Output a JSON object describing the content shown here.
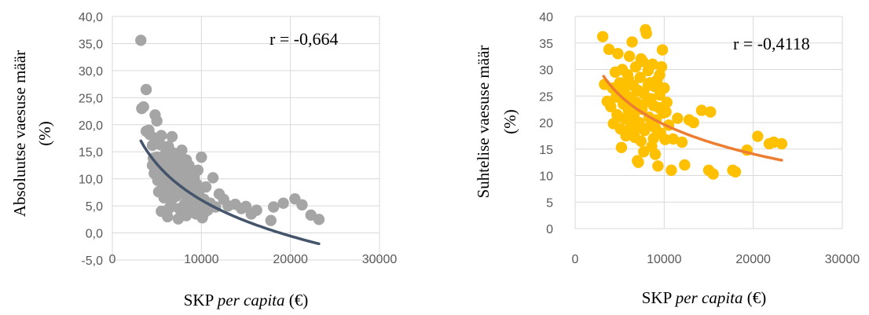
{
  "chart_data": [
    {
      "type": "scatter",
      "title": "",
      "ylabel_line1": "Absoluutse vaesuse määr",
      "ylabel_line2": "(%)",
      "xlabel_main": "SKP ",
      "xlabel_italic": "per capita",
      "xlabel_unit": " (€)",
      "annotation": "r = -0,664",
      "xlim": [
        0,
        30000
      ],
      "ylim": [
        -5,
        40
      ],
      "x_ticks": [
        0,
        10000,
        20000,
        30000
      ],
      "x_tick_labels": [
        "0",
        "10000",
        "20000",
        "30000"
      ],
      "y_ticks": [
        -5,
        0,
        5,
        10,
        15,
        20,
        25,
        30,
        35,
        40
      ],
      "y_tick_labels": [
        "-5,0",
        "0,0",
        "5,0",
        "10,0",
        "15,0",
        "20,0",
        "25,0",
        "30,0",
        "35,0",
        "40,0"
      ],
      "grid": true,
      "point_color": "#a5a5a5",
      "trend_color": "#44546a",
      "trend": {
        "type": "log",
        "a": 94.5,
        "b": -9.6,
        "x_range": [
          3200,
          23200
        ]
      },
      "points": [
        [
          3200,
          35.6
        ],
        [
          3300,
          23.0
        ],
        [
          3500,
          23.3
        ],
        [
          3800,
          26.5
        ],
        [
          3800,
          18.8
        ],
        [
          4100,
          19.0
        ],
        [
          4200,
          18.2
        ],
        [
          4500,
          16.2
        ],
        [
          4500,
          12.5
        ],
        [
          4700,
          11.0
        ],
        [
          4800,
          21.8
        ],
        [
          4900,
          17.5
        ],
        [
          5000,
          20.7
        ],
        [
          5000,
          14.0
        ],
        [
          5100,
          9.7
        ],
        [
          5200,
          7.6
        ],
        [
          5300,
          13.0
        ],
        [
          5400,
          16.3
        ],
        [
          5500,
          18.0
        ],
        [
          5600,
          11.5
        ],
        [
          5700,
          8.7
        ],
        [
          5800,
          6.5
        ],
        [
          5900,
          14.5
        ],
        [
          6000,
          12.2
        ],
        [
          6100,
          10.2
        ],
        [
          6200,
          7.0
        ],
        [
          6300,
          16.0
        ],
        [
          6400,
          13.3
        ],
        [
          6500,
          9.0
        ],
        [
          6600,
          11.8
        ],
        [
          6600,
          5.8
        ],
        [
          6700,
          17.8
        ],
        [
          6800,
          14.8
        ],
        [
          6900,
          8.0
        ],
        [
          7000,
          12.0
        ],
        [
          7100,
          10.5
        ],
        [
          7200,
          6.8
        ],
        [
          7300,
          13.8
        ],
        [
          7400,
          9.5
        ],
        [
          7500,
          4.5
        ],
        [
          7600,
          11.2
        ],
        [
          7700,
          7.5
        ],
        [
          7800,
          15.3
        ],
        [
          7900,
          12.8
        ],
        [
          8000,
          8.5
        ],
        [
          8100,
          5.3
        ],
        [
          8200,
          10.8
        ],
        [
          8300,
          13.5
        ],
        [
          8400,
          6.3
        ],
        [
          8500,
          9.8
        ],
        [
          8600,
          12.5
        ],
        [
          8700,
          7.8
        ],
        [
          8800,
          4.0
        ],
        [
          8900,
          11.0
        ],
        [
          9000,
          8.2
        ],
        [
          9100,
          5.8
        ],
        [
          9200,
          10.3
        ],
        [
          9300,
          6.8
        ],
        [
          9400,
          3.5
        ],
        [
          9500,
          9.0
        ],
        [
          9700,
          7.3
        ],
        [
          9900,
          5.0
        ],
        [
          10000,
          14.0
        ],
        [
          10100,
          2.8
        ],
        [
          10300,
          6.2
        ],
        [
          10500,
          8.5
        ],
        [
          10700,
          4.2
        ],
        [
          11000,
          5.5
        ],
        [
          11300,
          10.2
        ],
        [
          11600,
          4.8
        ],
        [
          12000,
          7.2
        ],
        [
          12500,
          6.2
        ],
        [
          13000,
          5.0
        ],
        [
          13800,
          5.3
        ],
        [
          14500,
          4.5
        ],
        [
          15000,
          4.9
        ],
        [
          15600,
          3.5
        ],
        [
          16200,
          4.2
        ],
        [
          17800,
          2.3
        ],
        [
          18100,
          4.8
        ],
        [
          19200,
          5.5
        ],
        [
          20500,
          6.3
        ],
        [
          21300,
          5.2
        ],
        [
          22300,
          3.3
        ],
        [
          23200,
          2.5
        ],
        [
          5500,
          4.0
        ],
        [
          6200,
          3.0
        ],
        [
          7400,
          2.6
        ],
        [
          8300,
          3.2
        ],
        [
          6000,
          15.8
        ],
        [
          4600,
          13.8
        ],
        [
          5800,
          10.8
        ],
        [
          6800,
          12.4
        ],
        [
          7800,
          8.8
        ],
        [
          8800,
          9.6
        ],
        [
          9600,
          11.6
        ],
        [
          7200,
          14.2
        ],
        [
          6400,
          4.6
        ],
        [
          10200,
          3.4
        ],
        [
          8600,
          6.0
        ]
      ]
    },
    {
      "type": "scatter",
      "title": "",
      "ylabel_line1": "Suhtelise vaesuse määr",
      "ylabel_line2": "(%)",
      "xlabel_main": "SKP ",
      "xlabel_italic": "per capita",
      "xlabel_unit": " (€)",
      "annotation": "r = -0,4118",
      "xlim": [
        0,
        30000
      ],
      "ylim": [
        0,
        40
      ],
      "x_ticks": [
        0,
        10000,
        20000,
        30000
      ],
      "x_tick_labels": [
        "0",
        "10000",
        "20000",
        "30000"
      ],
      "y_ticks": [
        0,
        5,
        10,
        15,
        20,
        25,
        30,
        35,
        40
      ],
      "y_tick_labels": [
        "0",
        "5",
        "10",
        "15",
        "20",
        "25",
        "30",
        "35",
        "40"
      ],
      "grid": true,
      "point_color": "#ffc000",
      "trend_color": "#ed7d31",
      "trend": {
        "type": "log",
        "a": 93.3,
        "b": -8.0,
        "x_range": [
          3200,
          23200
        ]
      },
      "points": [
        [
          3100,
          36.2
        ],
        [
          3300,
          27.2
        ],
        [
          3600,
          24.0
        ],
        [
          3800,
          33.8
        ],
        [
          4000,
          23.0
        ],
        [
          4200,
          26.5
        ],
        [
          4300,
          19.8
        ],
        [
          4500,
          29.5
        ],
        [
          4600,
          24.8
        ],
        [
          4800,
          33.0
        ],
        [
          4900,
          21.0
        ],
        [
          5000,
          27.5
        ],
        [
          5100,
          18.8
        ],
        [
          5200,
          15.3
        ],
        [
          5300,
          30.0
        ],
        [
          5400,
          23.5
        ],
        [
          5500,
          26.3
        ],
        [
          5600,
          20.7
        ],
        [
          5700,
          17.5
        ],
        [
          5800,
          25.0
        ],
        [
          5900,
          29.0
        ],
        [
          6000,
          22.0
        ],
        [
          6100,
          32.5
        ],
        [
          6200,
          19.0
        ],
        [
          6300,
          24.7
        ],
        [
          6400,
          35.2
        ],
        [
          6500,
          27.0
        ],
        [
          6600,
          21.5
        ],
        [
          6700,
          17.2
        ],
        [
          6800,
          30.5
        ],
        [
          6900,
          23.8
        ],
        [
          7000,
          12.8
        ],
        [
          7100,
          26.0
        ],
        [
          7200,
          20.0
        ],
        [
          7300,
          28.5
        ],
        [
          7400,
          16.5
        ],
        [
          7500,
          22.5
        ],
        [
          7600,
          31.5
        ],
        [
          7700,
          25.5
        ],
        [
          7800,
          18.5
        ],
        [
          7900,
          37.5
        ],
        [
          8000,
          36.8
        ],
        [
          8100,
          24.0
        ],
        [
          8200,
          29.8
        ],
        [
          8300,
          21.0
        ],
        [
          8400,
          27.5
        ],
        [
          8500,
          19.5
        ],
        [
          8600,
          15.5
        ],
        [
          8700,
          31.0
        ],
        [
          8800,
          23.2
        ],
        [
          8900,
          26.8
        ],
        [
          9000,
          14.0
        ],
        [
          9100,
          20.5
        ],
        [
          9200,
          28.0
        ],
        [
          9300,
          11.8
        ],
        [
          9400,
          22.8
        ],
        [
          9500,
          25.2
        ],
        [
          9600,
          18.0
        ],
        [
          9700,
          30.5
        ],
        [
          9800,
          33.7
        ],
        [
          9900,
          21.8
        ],
        [
          10000,
          26.5
        ],
        [
          10100,
          16.8
        ],
        [
          10200,
          22.0
        ],
        [
          10500,
          19.5
        ],
        [
          10800,
          11.0
        ],
        [
          11000,
          16.9
        ],
        [
          11500,
          20.8
        ],
        [
          12000,
          16.3
        ],
        [
          12300,
          12.0
        ],
        [
          12800,
          20.5
        ],
        [
          13300,
          20.0
        ],
        [
          14200,
          22.3
        ],
        [
          15000,
          11.0
        ],
        [
          15200,
          22.0
        ],
        [
          15500,
          10.3
        ],
        [
          17700,
          11.0
        ],
        [
          18000,
          10.7
        ],
        [
          19300,
          14.8
        ],
        [
          20500,
          17.4
        ],
        [
          21800,
          16.0
        ],
        [
          22300,
          16.3
        ],
        [
          23200,
          16.0
        ],
        [
          7100,
          12.5
        ],
        [
          5900,
          22.8
        ],
        [
          6600,
          17.8
        ],
        [
          8200,
          27.0
        ],
        [
          9000,
          19.0
        ],
        [
          7400,
          32.0
        ],
        [
          8500,
          24.5
        ],
        [
          6300,
          20.0
        ],
        [
          7700,
          14.5
        ],
        [
          9500,
          29.0
        ],
        [
          6900,
          26.2
        ],
        [
          5300,
          25.8
        ],
        [
          4700,
          21.5
        ],
        [
          10300,
          23.8
        ],
        [
          8800,
          17.0
        ],
        [
          7300,
          19.3
        ],
        [
          6000,
          28.2
        ]
      ]
    }
  ]
}
